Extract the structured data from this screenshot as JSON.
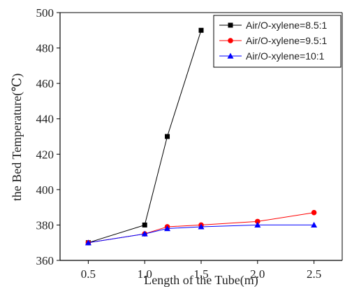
{
  "chart_data": {
    "type": "line",
    "title": "",
    "xlabel": "Length of the Tube(m)",
    "ylabel": "the Bed Temperature(℃)",
    "xlim": [
      0.25,
      2.75
    ],
    "ylim": [
      360,
      500
    ],
    "xticks": [
      0.5,
      1.0,
      1.5,
      2.0,
      2.5
    ],
    "xtick_labels": [
      "0.5",
      "1.0",
      "1.5",
      "2.0",
      "2.5"
    ],
    "yticks": [
      360,
      380,
      400,
      420,
      440,
      460,
      480,
      500
    ],
    "ytick_labels": [
      "360",
      "380",
      "400",
      "420",
      "440",
      "460",
      "480",
      "500"
    ],
    "grid": false,
    "legend_position": "top-right",
    "series": [
      {
        "name": "Air/O-xylene=8.5:1",
        "color": "#000000",
        "marker": "square",
        "x": [
          0.5,
          1.0,
          1.2,
          1.5
        ],
        "y": [
          370,
          380,
          430,
          490
        ]
      },
      {
        "name": "Air/O-xylene=9.5:1",
        "color": "#ff0000",
        "marker": "circle",
        "x": [
          0.5,
          1.0,
          1.2,
          1.5,
          2.0,
          2.5
        ],
        "y": [
          370,
          375,
          379,
          380,
          382,
          387
        ]
      },
      {
        "name": "Air/O-xylene=10:1",
        "color": "#0000ff",
        "marker": "triangle",
        "x": [
          0.5,
          1.0,
          1.2,
          1.5,
          2.0,
          2.5
        ],
        "y": [
          370,
          375,
          378,
          379,
          380,
          380
        ]
      }
    ]
  }
}
